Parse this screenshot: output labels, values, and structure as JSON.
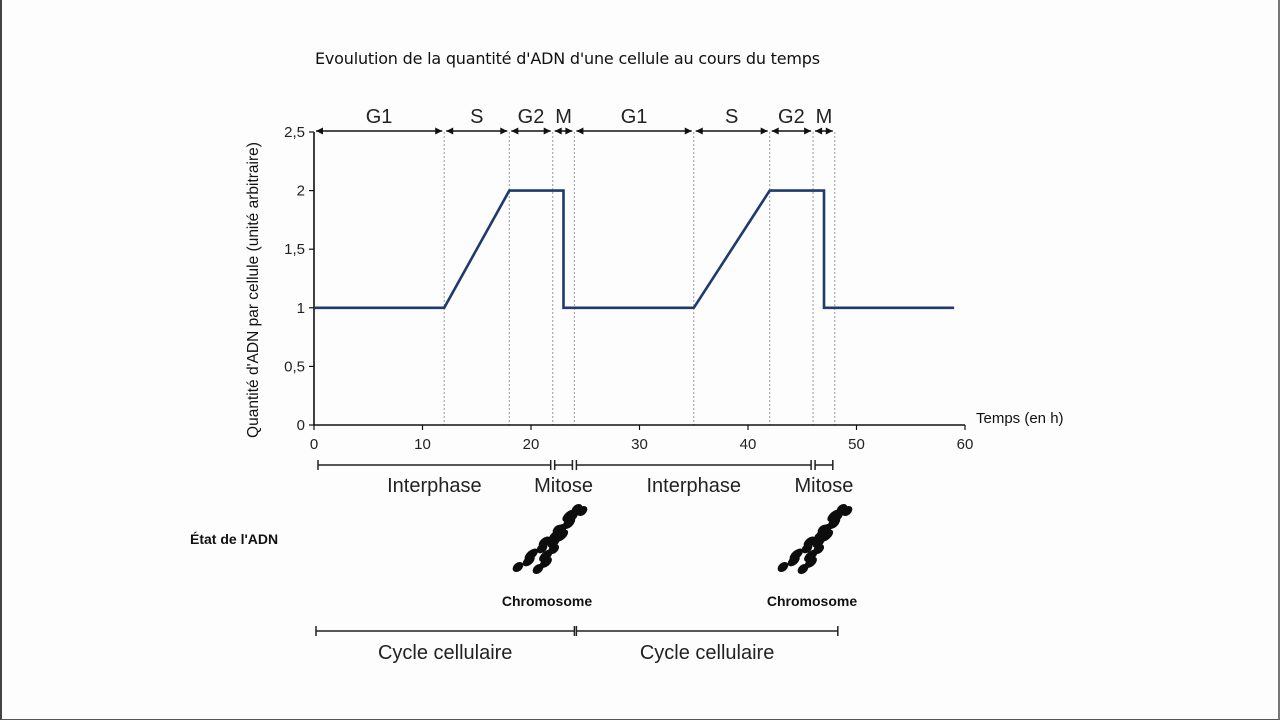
{
  "title": "Evoulution de la quantité d'ADN d'une cellule au cours du temps",
  "chart_data": {
    "type": "line",
    "title": "Evoulution de la quantité d'ADN d'une cellule au cours du temps",
    "xlabel": "Temps (en h)",
    "ylabel": "Quantité d'ADN par cellule (unité arbitraire)",
    "xlim": [
      0,
      60
    ],
    "ylim": [
      0,
      2.5
    ],
    "x_ticks": [
      0,
      10,
      20,
      30,
      40,
      50,
      60
    ],
    "y_ticks": [
      0,
      0.5,
      1,
      1.5,
      2,
      2.5
    ],
    "y_tick_labels": [
      "0",
      "0,5",
      "1",
      "1,5",
      "2",
      "2,5"
    ],
    "grid": false,
    "series": [
      {
        "name": "Quantité d'ADN",
        "color": "#1f3a6b",
        "x": [
          0,
          12,
          18,
          23,
          23,
          35,
          42,
          47,
          47,
          59
        ],
        "y": [
          1,
          1,
          2,
          2,
          1,
          1,
          2,
          2,
          1,
          1
        ]
      }
    ],
    "phases": [
      {
        "label": "G1",
        "start": 0,
        "end": 12
      },
      {
        "label": "S",
        "start": 12,
        "end": 18
      },
      {
        "label": "G2",
        "start": 18,
        "end": 22
      },
      {
        "label": "M",
        "start": 22,
        "end": 24
      },
      {
        "label": "G1",
        "start": 24,
        "end": 35
      },
      {
        "label": "S",
        "start": 35,
        "end": 42
      },
      {
        "label": "G2",
        "start": 42,
        "end": 46
      },
      {
        "label": "M",
        "start": 46,
        "end": 48
      }
    ],
    "phase_boundaries": [
      12,
      18,
      22,
      24,
      35,
      42,
      46,
      48
    ],
    "periods": [
      {
        "label": "Interphase",
        "start": 0,
        "end": 22
      },
      {
        "label": "Mitose",
        "start": 22,
        "end": 24
      },
      {
        "label": "Interphase",
        "start": 24,
        "end": 46
      },
      {
        "label": "Mitose",
        "start": 46,
        "end": 48
      }
    ],
    "cycles": [
      {
        "label": "Cycle cellulaire",
        "start": 0,
        "end": 24
      },
      {
        "label": "Cycle cellulaire",
        "start": 24,
        "end": 48
      }
    ]
  },
  "dna_state": {
    "label": "État de l'ADN",
    "chromosomes": [
      {
        "label": "Chromosome",
        "icon": "chromosome-icon"
      },
      {
        "label": "Chromosome",
        "icon": "chromosome-icon"
      }
    ]
  },
  "colors": {
    "curve": "#1f3a6b",
    "axis": "#111111",
    "guide": "#9a9a9a"
  }
}
